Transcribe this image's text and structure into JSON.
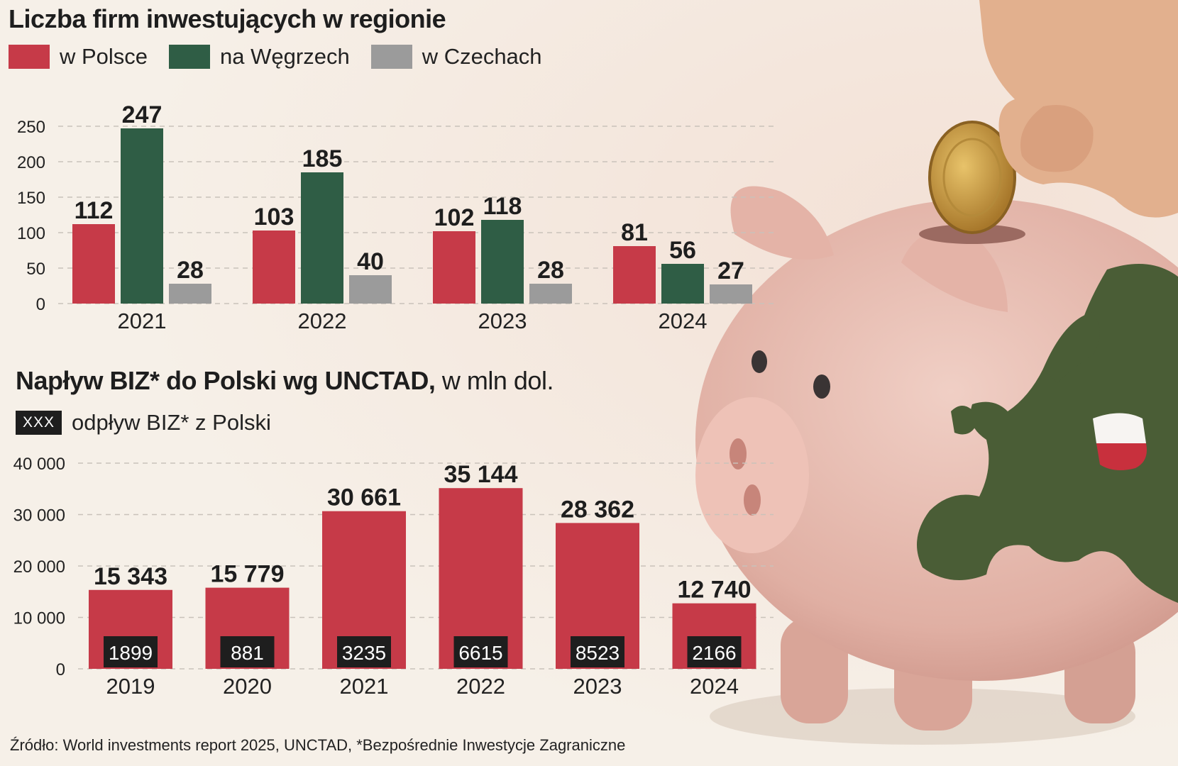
{
  "colors": {
    "poland": "#c63a48",
    "hungary": "#2f5d45",
    "czech": "#9b9b9b",
    "dark": "#1e1e1e",
    "background": "#f6f0e8",
    "pig": "#e6b9ae",
    "europe": "#4a5d36"
  },
  "chart_data": [
    {
      "type": "bar",
      "title": "Liczba firm inwestujących w regionie",
      "categories": [
        "2021",
        "2022",
        "2023",
        "2024"
      ],
      "series": [
        {
          "name": "w Polsce",
          "color_key": "poland",
          "values": [
            112,
            103,
            102,
            81
          ]
        },
        {
          "name": "na Węgrzech",
          "color_key": "hungary",
          "values": [
            247,
            185,
            118,
            56
          ]
        },
        {
          "name": "w Czechach",
          "color_key": "czech",
          "values": [
            28,
            40,
            28,
            27
          ]
        }
      ],
      "yticks": [
        "0",
        "50",
        "100",
        "150",
        "200",
        "250"
      ],
      "ylim": [
        0,
        260
      ],
      "grid": "dashed",
      "legend": "top-left"
    },
    {
      "type": "bar",
      "title_bold": "Napływ BIZ* do Polski wg UNCTAD,",
      "title_unit": " w mln dol.",
      "categories": [
        "2019",
        "2020",
        "2021",
        "2022",
        "2023",
        "2024"
      ],
      "series": [
        {
          "name": "napływ BIZ",
          "color_key": "poland",
          "values": [
            15343,
            15779,
            30661,
            35144,
            28362,
            12740
          ]
        }
      ],
      "value_labels": [
        "15 343",
        "15 779",
        "30 661",
        "35 144",
        "28 362",
        "12 740"
      ],
      "outflow_labels": [
        "1899",
        "881",
        "3235",
        "6615",
        "8523",
        "2166"
      ],
      "legend_box": "XXX",
      "legend_label": "odpływ BIZ* z Polski",
      "yticks": [
        "0",
        "10 000",
        "20 000",
        "30 000",
        "40 000"
      ],
      "ylim": [
        0,
        40000
      ],
      "grid": "dashed"
    }
  ],
  "source": "Źródło: World investments report 2025, UNCTAD, *Bezpośrednie Inwestycje Zagraniczne"
}
